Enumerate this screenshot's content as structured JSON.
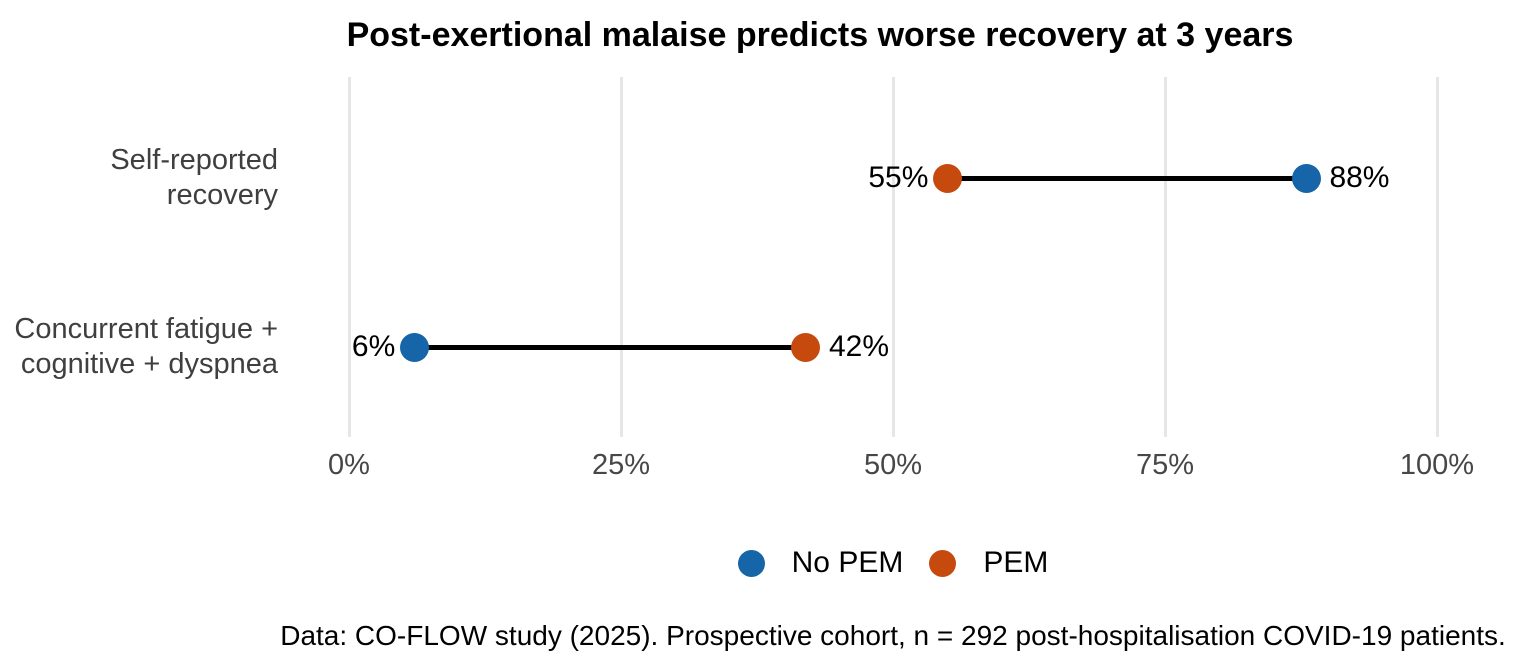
{
  "title": "Post-exertional malaise predicts worse recovery at 3 years",
  "caption": "Data: CO-FLOW study (2025). Prospective cohort, n = 292 post-hospitalisation COVID-19 patients.",
  "chart_data": {
    "type": "scatter",
    "variant": "dumbbell",
    "title": "Post-exertional malaise predicts worse recovery at 3 years",
    "categories": [
      "Self-reported recovery",
      "Concurrent fatigue + cognitive + dyspnea"
    ],
    "category_label_lines": [
      [
        "Self-reported",
        "recovery"
      ],
      [
        "Concurrent fatigue +",
        "cognitive + dyspnea"
      ]
    ],
    "series": [
      {
        "name": "No PEM",
        "color": "#1565a8",
        "values": [
          88,
          6
        ],
        "value_labels": [
          "88%",
          "6%"
        ]
      },
      {
        "name": "PEM",
        "color": "#c64a0e",
        "values": [
          55,
          42
        ],
        "value_labels": [
          "55%",
          "42%"
        ]
      }
    ],
    "xlabel": "",
    "ylabel": "",
    "xlim": [
      0,
      100
    ],
    "x_ticks": [
      0,
      25,
      50,
      75,
      100
    ],
    "x_tick_labels": [
      "0%",
      "25%",
      "50%",
      "75%",
      "100%"
    ],
    "grid": "vertical-only",
    "gridline_color": "#e6e6e6",
    "connector_color": "#000000",
    "legend_position": "bottom",
    "caption": "Data: CO-FLOW study (2025). Prospective cohort, n = 292 post-hospitalisation COVID-19 patients."
  }
}
